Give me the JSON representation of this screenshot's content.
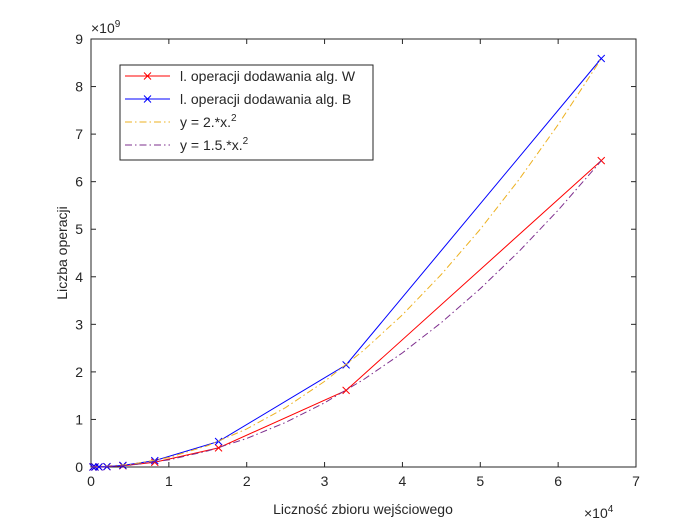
{
  "chart_data": {
    "type": "line",
    "xlabel": "Liczność zbioru wejściowego",
    "ylabel": "Liczba operacji",
    "x_multiplier": {
      "base": "×10",
      "exponent": "4"
    },
    "y_multiplier": {
      "base": "×10",
      "exponent": "9"
    },
    "xlim": [
      0,
      7
    ],
    "xticks": [
      0,
      1,
      2,
      3,
      4,
      5,
      6,
      7
    ],
    "ylim": [
      0,
      9
    ],
    "yticks": [
      0,
      1,
      2,
      3,
      4,
      5,
      6,
      7,
      8,
      9
    ],
    "grid": false,
    "legend": "upper left",
    "series": [
      {
        "name": "l. operacji dodawania alg. W",
        "color": "#ff0000",
        "linestyle": "solid",
        "marker": "x",
        "x": [
          0.0256,
          0.0512,
          0.1024,
          0.2048,
          0.4096,
          0.8192,
          1.6384,
          3.2768,
          6.5536
        ],
        "values": [
          0.0001,
          0.0004,
          0.0016,
          0.0063,
          0.0252,
          0.1007,
          0.4027,
          1.6106,
          6.4425
        ]
      },
      {
        "name": "l. operacji dodawania alg. B",
        "color": "#0000ff",
        "linestyle": "solid",
        "marker": "x",
        "x": [
          0.0256,
          0.0512,
          0.1024,
          0.2048,
          0.4096,
          0.8192,
          1.6384,
          3.2768,
          6.5536
        ],
        "values": [
          0.0001,
          0.0005,
          0.0021,
          0.0084,
          0.0336,
          0.1342,
          0.5369,
          2.1475,
          8.5899
        ]
      },
      {
        "name": "y = 2.*x.^2",
        "color": "#edb120",
        "linestyle": "dashdot",
        "marker": "none",
        "x": [
          0,
          0.5,
          1,
          1.5,
          2,
          2.5,
          3,
          3.5,
          4,
          4.5,
          5,
          5.5,
          6,
          6.5,
          6.5536
        ],
        "values": [
          0,
          0.05,
          0.2,
          0.45,
          0.8,
          1.25,
          1.8,
          2.45,
          3.2,
          4.05,
          5.0,
          6.05,
          7.2,
          8.45,
          8.5899
        ]
      },
      {
        "name": "y = 1.5.*x.^2",
        "color": "#7e2f8e",
        "linestyle": "dashdot",
        "marker": "none",
        "x": [
          0,
          0.5,
          1,
          1.5,
          2,
          2.5,
          3,
          3.5,
          4,
          4.5,
          5,
          5.5,
          6,
          6.5,
          6.5536
        ],
        "values": [
          0,
          0.0375,
          0.15,
          0.3375,
          0.6,
          0.9375,
          1.35,
          1.8375,
          2.4,
          3.0375,
          3.75,
          4.5375,
          5.4,
          6.3375,
          6.4425
        ]
      }
    ]
  }
}
